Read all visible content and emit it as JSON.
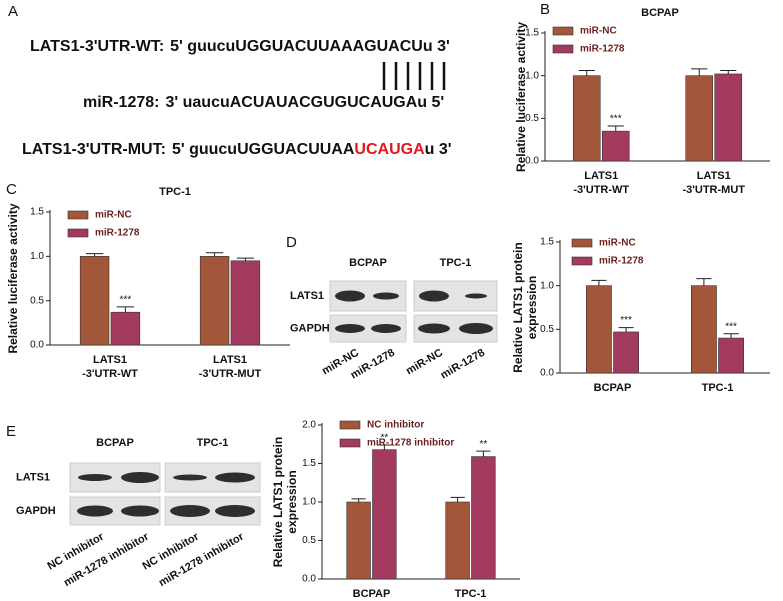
{
  "panel_labels": [
    "A",
    "B",
    "C",
    "D",
    "E"
  ],
  "sequences": [
    {
      "label": "LATS1-3'UTR-WT:",
      "parts": [
        "5' guucuUGGUACUUAAAGUACUu 3'"
      ]
    },
    {
      "label": "miR-1278:",
      "parts": [
        "3' uaucuACUAUACGUGUCAUGAu 5'"
      ]
    },
    {
      "label": "LATS1-3'UTR-MUT:",
      "parts": [
        "5' guucuUGGUACUUAA",
        "UCAUGA",
        "u 3'"
      ]
    }
  ],
  "blots": [
    {
      "cell_lines": [
        "BCPAP",
        "TPC-1"
      ],
      "rows": [
        "LATS1",
        "GAPDH"
      ],
      "lanes": [
        "miR-NC",
        "miR-1278",
        "miR-NC",
        "miR-1278"
      ]
    },
    {
      "cell_lines": [
        "BCPAP",
        "TPC-1"
      ],
      "rows": [
        "LATS1",
        "GAPDH"
      ],
      "lanes": [
        "NC inhibitor",
        "miR-1278 inhibitor",
        "NC inhibitor",
        "miR-1278 inhibitor"
      ]
    }
  ],
  "chart_data": [
    {
      "type": "bar",
      "title": "BCPAP",
      "y_label": [
        "Relative luciferase activity"
      ],
      "categories": [
        [
          "LATS1",
          "-3'UTR-WT"
        ],
        [
          "LATS1",
          "-3'UTR-MUT"
        ]
      ],
      "series": [
        {
          "name": "miR-NC",
          "color": "#a3573a",
          "values": [
            1.0,
            1.0
          ],
          "errors": [
            0.06,
            0.08
          ],
          "significance": [
            null,
            null
          ]
        },
        {
          "name": "miR-1278",
          "color": "#a33b60",
          "values": [
            0.35,
            1.02
          ],
          "errors": [
            0.06,
            0.04
          ],
          "significance": [
            "***",
            null
          ]
        }
      ],
      "ylim": [
        0,
        1.5
      ],
      "yticks": [
        {
          "value": 0,
          "label": "0.0"
        },
        0.5,
        {
          "value": 1,
          "label": "1.0"
        },
        1.5
      ]
    },
    {
      "type": "bar",
      "title": "TPC-1",
      "y_label": [
        "Relative luciferase activity"
      ],
      "categories": [
        [
          "LATS1",
          "-3'UTR-WT"
        ],
        [
          "LATS1",
          "-3'UTR-MUT"
        ]
      ],
      "series": [
        {
          "name": "miR-NC",
          "color": "#a3573a",
          "values": [
            1.0,
            1.0
          ],
          "errors": [
            0.03,
            0.04
          ],
          "significance": [
            null,
            null
          ]
        },
        {
          "name": "miR-1278",
          "color": "#a33b60",
          "values": [
            0.37,
            0.95
          ],
          "errors": [
            0.06,
            0.03
          ],
          "significance": [
            "***",
            null
          ]
        }
      ],
      "ylim": [
        0,
        1.5
      ],
      "yticks": [
        {
          "value": 0,
          "label": "0.0"
        },
        0.5,
        {
          "value": 1,
          "label": "1.0"
        },
        1.5
      ]
    },
    {
      "type": "bar",
      "y_label": [
        "Relative LATS1 protein",
        "expression"
      ],
      "categories": [
        [
          "BCPAP"
        ],
        [
          "TPC-1"
        ]
      ],
      "series": [
        {
          "name": "miR-NC",
          "color": "#a3573a",
          "values": [
            1.0,
            1.0
          ],
          "errors": [
            0.06,
            0.08
          ],
          "significance": [
            null,
            null
          ]
        },
        {
          "name": "miR-1278",
          "color": "#a33b60",
          "values": [
            0.47,
            0.4
          ],
          "errors": [
            0.05,
            0.05
          ],
          "significance": [
            "***",
            "***"
          ]
        }
      ],
      "ylim": [
        0,
        1.5
      ],
      "yticks": [
        {
          "value": 0,
          "label": "0.0"
        },
        0.5,
        {
          "value": 1,
          "label": "1.0"
        },
        1.5
      ]
    },
    {
      "type": "bar",
      "y_label": [
        "Relative LATS1 protein",
        "expression"
      ],
      "categories": [
        [
          "BCPAP"
        ],
        [
          "TPC-1"
        ]
      ],
      "series": [
        {
          "name": "NC inhibitor",
          "color": "#a3573a",
          "values": [
            1.0,
            1.0
          ],
          "errors": [
            0.04,
            0.06
          ],
          "significance": [
            null,
            null
          ]
        },
        {
          "name": "miR-1278 inhibitor",
          "color": "#a33b60",
          "values": [
            1.68,
            1.59
          ],
          "errors": [
            0.06,
            0.07
          ],
          "significance": [
            "**",
            "**"
          ]
        }
      ],
      "ylim": [
        0,
        2
      ],
      "yticks": [
        {
          "value": 0,
          "label": "0.0"
        },
        0.5,
        {
          "value": 1,
          "label": "1.0"
        },
        1.5,
        {
          "value": 2,
          "label": "2.0"
        }
      ]
    }
  ]
}
